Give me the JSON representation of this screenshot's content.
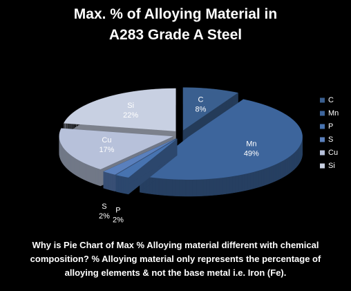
{
  "chart_data": {
    "type": "pie",
    "title": "Max. % of Alloying Material in A283 Grade A Steel",
    "categories": [
      "C",
      "Mn",
      "P",
      "S",
      "Cu",
      "Si"
    ],
    "values": [
      8,
      49,
      2,
      2,
      17,
      22
    ],
    "value_labels": [
      "8%",
      "49%",
      "2%",
      "2%",
      "17%",
      "22%"
    ],
    "colors": [
      "#3a5f8f",
      "#3d659c",
      "#4773b0",
      "#5a80bd",
      "#b7c1da",
      "#c8d0e2"
    ],
    "legend": "right"
  },
  "caption": "Why is Pie Chart of Max % Alloying material different with chemical composition? % Alloying material only represents the percentage of alloying elements & not the base metal i.e. Iron (Fe)."
}
